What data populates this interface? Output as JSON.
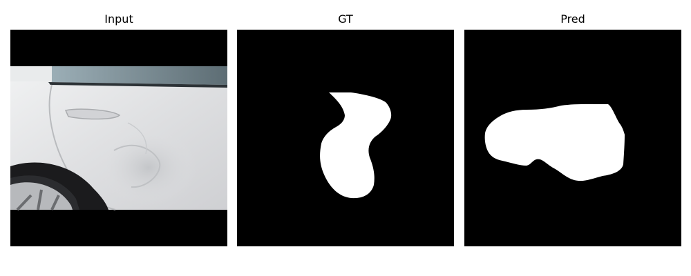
{
  "panels": [
    {
      "title": "Input",
      "content": "car-side-dent-photo"
    },
    {
      "title": "GT",
      "content": "ground-truth-mask"
    },
    {
      "title": "Pred",
      "content": "predicted-mask"
    }
  ],
  "colors": {
    "background": "#ffffff",
    "mask_background": "#000000",
    "mask_foreground": "#ffffff",
    "car_body": "#e3e4e6",
    "tire": "#1b1b1d",
    "window_glass": "#7f939c"
  }
}
